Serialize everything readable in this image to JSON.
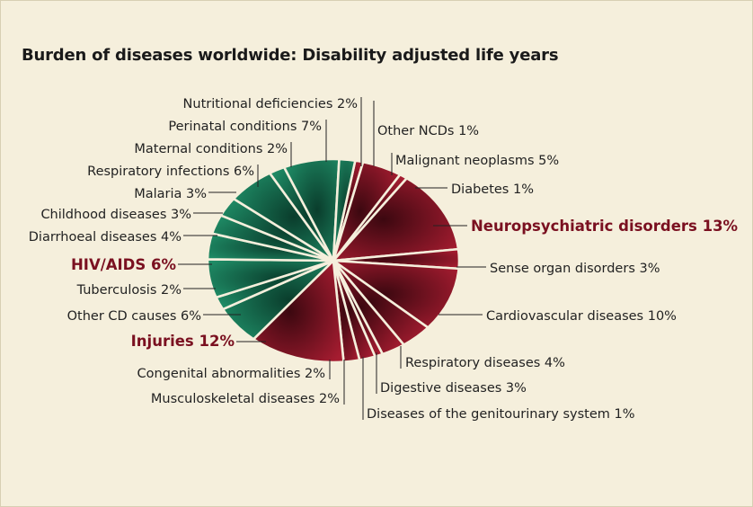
{
  "chart_data": {
    "type": "pie",
    "title": "Burden of diseases worldwide: Disability adjusted life years",
    "unit": "%",
    "slices": [
      {
        "name": "Other NCDs",
        "value": 1,
        "group": "ncd",
        "label": "Other NCDs 1%"
      },
      {
        "name": "Malignant neoplasms",
        "value": 5,
        "group": "ncd",
        "label": "Malignant neoplasms 5%"
      },
      {
        "name": "Diabetes",
        "value": 1,
        "group": "ncd",
        "label": "Diabetes 1%"
      },
      {
        "name": "Neuropsychiatric disorders",
        "value": 13,
        "group": "ncd",
        "label": "Neuropsychiatric disorders 13%",
        "highlight": true
      },
      {
        "name": "Sense organ disorders",
        "value": 3,
        "group": "ncd",
        "label": "Sense organ disorders 3%"
      },
      {
        "name": "Cardiovascular diseases",
        "value": 10,
        "group": "ncd",
        "label": "Cardiovascular diseases 10%"
      },
      {
        "name": "Respiratory diseases",
        "value": 4,
        "group": "ncd",
        "label": "Respiratory diseases 4%"
      },
      {
        "name": "Digestive diseases",
        "value": 3,
        "group": "ncd",
        "label": "Digestive diseases 3%"
      },
      {
        "name": "Diseases of the genitourinary system",
        "value": 1,
        "group": "ncd",
        "label": "Diseases of the genitourinary system 1%"
      },
      {
        "name": "Musculoskeletal diseases",
        "value": 2,
        "group": "ncd",
        "label": "Musculoskeletal diseases 2%"
      },
      {
        "name": "Congenital abnormalities",
        "value": 2,
        "group": "ncd",
        "label": "Congenital abnormalities 2%"
      },
      {
        "name": "Injuries",
        "value": 12,
        "group": "ncd",
        "label": "Injuries 12%",
        "highlight": true
      },
      {
        "name": "Other CD causes",
        "value": 6,
        "group": "cd",
        "label": "Other CD causes 6%"
      },
      {
        "name": "Tuberculosis",
        "value": 2,
        "group": "cd",
        "label": "Tuberculosis 2%"
      },
      {
        "name": "HIV/AIDS",
        "value": 6,
        "group": "cd",
        "label": "HIV/AIDS 6%",
        "highlight": true
      },
      {
        "name": "Diarrhoeal diseases",
        "value": 4,
        "group": "cd",
        "label": "Diarrhoeal diseases 4%"
      },
      {
        "name": "Childhood diseases",
        "value": 3,
        "group": "cd",
        "label": "Childhood diseases 3%"
      },
      {
        "name": "Malaria",
        "value": 3,
        "group": "cd",
        "label": "Malaria 3%"
      },
      {
        "name": "Respiratory infections",
        "value": 6,
        "group": "cd",
        "label": "Respiratory infections 6%"
      },
      {
        "name": "Maternal conditions",
        "value": 2,
        "group": "cd",
        "label": "Maternal conditions 2%"
      },
      {
        "name": "Perinatal conditions",
        "value": 7,
        "group": "cd",
        "label": "Perinatal conditions 7%"
      },
      {
        "name": "Nutritional deficiencies",
        "value": 2,
        "group": "cd",
        "label": "Nutritional deficiencies 2%"
      }
    ],
    "colors": {
      "ncd_dark": "#3c0810",
      "ncd_light": "#a51c30",
      "cd_dark": "#0a3d2c",
      "cd_light": "#1f8c66",
      "separator": "#f5efdc",
      "highlight_text": "#7a1020"
    }
  }
}
